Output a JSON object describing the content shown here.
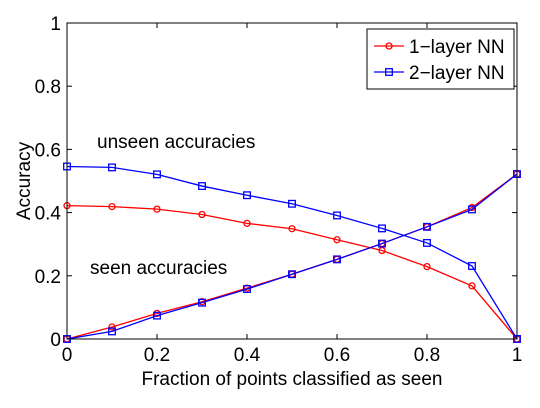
{
  "chart_data": {
    "type": "line",
    "title": "",
    "xlabel": "Fraction of points classified as seen",
    "ylabel": "Accuracy",
    "xlim": [
      0,
      1
    ],
    "ylim": [
      0,
      1
    ],
    "x_ticks": [
      "0",
      "0.2",
      "0.4",
      "0.6",
      "0.8",
      "1"
    ],
    "y_ticks": [
      "0",
      "0.2",
      "0.4",
      "0.6",
      "0.8",
      "1"
    ],
    "grid": false,
    "legend_position": "top-right",
    "x": [
      0,
      0.1,
      0.2,
      0.3,
      0.4,
      0.5,
      0.6,
      0.7,
      0.8,
      0.9,
      1.0
    ],
    "series": [
      {
        "name": "1−layer NN",
        "color": "#ff0000",
        "marker": "circle",
        "curves": [
          {
            "label": "unseen",
            "values": [
              0.422,
              0.419,
              0.411,
              0.394,
              0.366,
              0.349,
              0.314,
              0.28,
              0.229,
              0.168,
              0.0
            ]
          },
          {
            "label": "seen",
            "values": [
              0.0,
              0.038,
              0.081,
              0.118,
              0.161,
              0.205,
              0.252,
              0.302,
              0.355,
              0.416,
              0.522
            ]
          }
        ]
      },
      {
        "name": "2−layer NN",
        "color": "#0000ff",
        "marker": "square",
        "curves": [
          {
            "label": "unseen",
            "values": [
              0.546,
              0.543,
              0.521,
              0.484,
              0.455,
              0.428,
              0.391,
              0.35,
              0.304,
              0.231,
              0.0
            ]
          },
          {
            "label": "seen",
            "values": [
              0.0,
              0.024,
              0.074,
              0.115,
              0.158,
              0.205,
              0.252,
              0.302,
              0.355,
              0.41,
              0.522
            ]
          }
        ]
      }
    ],
    "annotations": {
      "unseen": "unseen accuracies",
      "seen": "seen accuracies"
    }
  }
}
